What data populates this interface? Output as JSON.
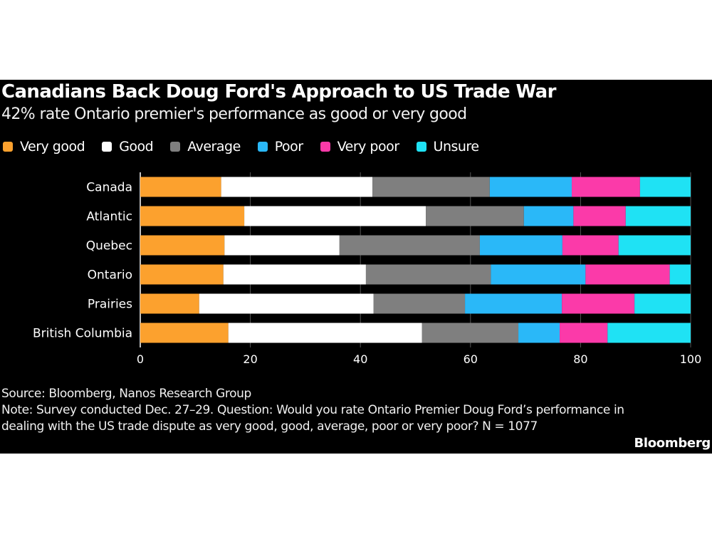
{
  "chart_data": {
    "type": "bar",
    "orientation": "horizontal",
    "stacked": true,
    "title": "Canadians Back Doug Ford's Approach to US Trade War",
    "subtitle": "42% rate Ontario premier's performance as good or very good",
    "categories": [
      "Canada",
      "Atlantic",
      "Quebec",
      "Ontario",
      "Prairies",
      "British Columbia"
    ],
    "series": [
      {
        "name": "Very good",
        "color": "#fca12e",
        "values": [
          14.7,
          18.9,
          15.3,
          15.1,
          10.7,
          16.0
        ]
      },
      {
        "name": "Good",
        "color": "#ffffff",
        "values": [
          27.5,
          33.0,
          20.9,
          25.9,
          31.7,
          35.2
        ]
      },
      {
        "name": "Average",
        "color": "#7f7f7f",
        "values": [
          21.3,
          17.8,
          25.5,
          22.7,
          16.6,
          17.5
        ]
      },
      {
        "name": "Poor",
        "color": "#2ab8f8",
        "values": [
          14.9,
          9.0,
          15.0,
          17.2,
          17.6,
          7.5
        ]
      },
      {
        "name": "Very poor",
        "color": "#fb3aa9",
        "values": [
          12.4,
          9.5,
          10.2,
          15.3,
          13.2,
          8.7
        ]
      },
      {
        "name": "Unsure",
        "color": "#1fe2f4",
        "values": [
          9.2,
          11.8,
          13.1,
          3.8,
          10.2,
          15.1
        ]
      }
    ],
    "xlabel": "",
    "ylabel": "",
    "xlim": [
      0,
      100
    ],
    "xticks": [
      "0",
      "20",
      "40",
      "60",
      "80",
      "100"
    ],
    "xtick_values": [
      0,
      20,
      40,
      60,
      80,
      100
    ],
    "grid": true,
    "legend_position": "top-left"
  },
  "footer": {
    "source": "Source: Bloomberg, Nanos Research Group",
    "note": "Note: Survey conducted Dec. 27–29. Question: Would you rate Ontario Premier Doug Ford’s performance in dealing with the US trade dispute as very good, good, average, poor or very poor? N = 1077",
    "brand": "Bloomberg"
  }
}
